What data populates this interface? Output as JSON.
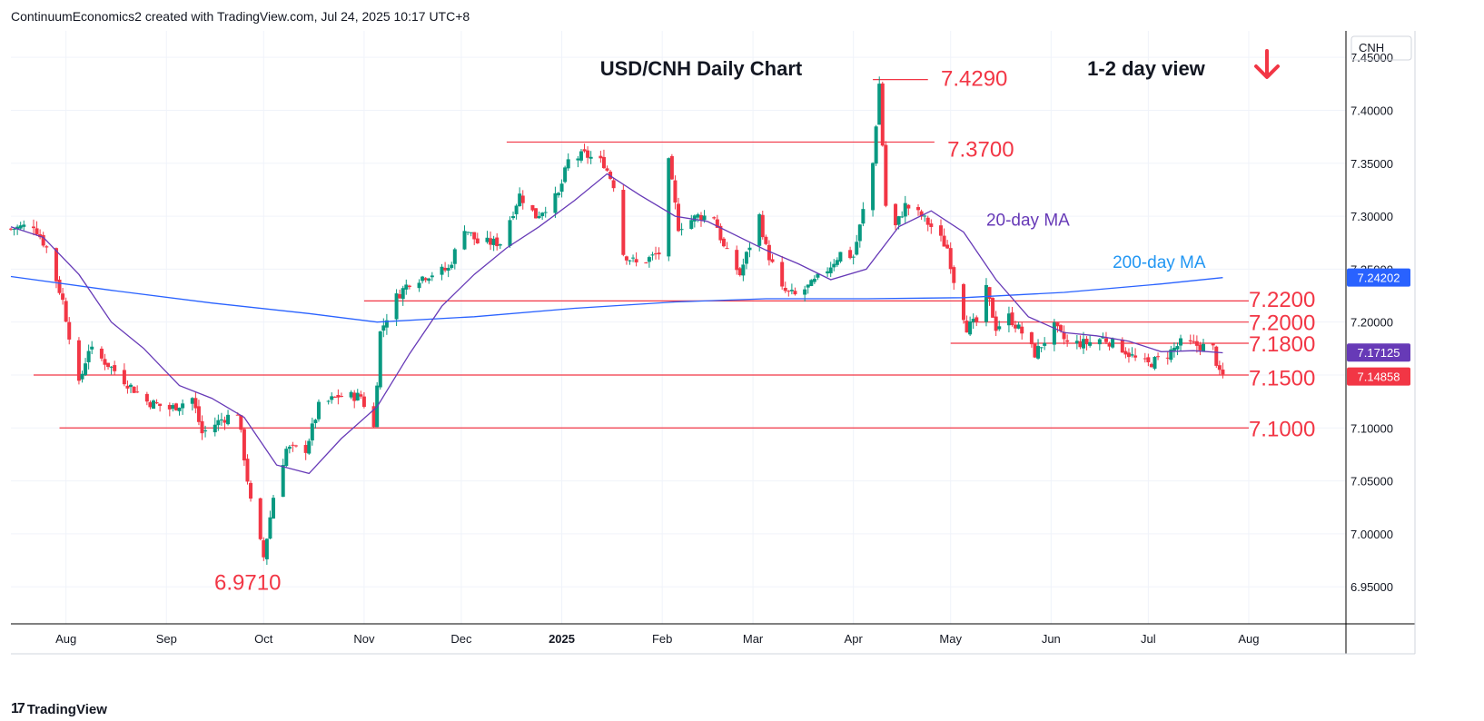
{
  "header": {
    "credit": "ContinuumEconomics2 created with TradingView.com, Jul 24, 2025 10:17 UTC+8"
  },
  "footer": {
    "logo_text": "TradingView"
  },
  "chart_data": {
    "type": "candlestick",
    "title": "USD/CNH Daily Chart",
    "view_label": "1-2 day view",
    "view_direction": "down",
    "currency_label": "CNH",
    "colors": {
      "up": "#089981",
      "down": "#f23645",
      "annotation": "#f23645",
      "ma20": "#673ab7",
      "ma200": "#2962ff",
      "ma200_label": "#2196f3",
      "grid": "#f0f3fa"
    },
    "ylim": [
      6.915,
      7.475
    ],
    "y_ticks": [
      "7.45000",
      "7.40000",
      "7.35000",
      "7.30000",
      "7.25000",
      "7.20000",
      "7.15000",
      "7.10000",
      "7.05000",
      "7.00000",
      "6.95000"
    ],
    "y_tick_values": [
      7.45,
      7.4,
      7.35,
      7.3,
      7.25,
      7.2,
      7.15,
      7.1,
      7.05,
      7.0,
      6.95
    ],
    "x_tick_labels": [
      {
        "label": "Aug",
        "date": "2024-08-01",
        "bold": false
      },
      {
        "label": "Sep",
        "date": "2024-09-01",
        "bold": false
      },
      {
        "label": "Oct",
        "date": "2024-10-01",
        "bold": false
      },
      {
        "label": "Nov",
        "date": "2024-11-01",
        "bold": false
      },
      {
        "label": "Dec",
        "date": "2024-12-01",
        "bold": false
      },
      {
        "label": "2025",
        "date": "2025-01-01",
        "bold": true
      },
      {
        "label": "Feb",
        "date": "2025-02-01",
        "bold": false
      },
      {
        "label": "Mar",
        "date": "2025-03-01",
        "bold": false
      },
      {
        "label": "Apr",
        "date": "2025-04-01",
        "bold": false
      },
      {
        "label": "May",
        "date": "2025-05-01",
        "bold": false
      },
      {
        "label": "Jun",
        "date": "2025-06-01",
        "bold": false
      },
      {
        "label": "Jul",
        "date": "2025-07-01",
        "bold": false
      },
      {
        "label": "Aug",
        "date": "2025-08-01",
        "bold": false
      }
    ],
    "x_range": [
      "2024-07-15",
      "2025-08-31"
    ],
    "price_path": [
      [
        "2024-07-15",
        7.288
      ],
      [
        "2024-07-22",
        7.292
      ],
      [
        "2024-07-26",
        7.27
      ],
      [
        "2024-07-31",
        7.22
      ],
      [
        "2024-08-05",
        7.14
      ],
      [
        "2024-08-08",
        7.175
      ],
      [
        "2024-08-14",
        7.16
      ],
      [
        "2024-08-20",
        7.142
      ],
      [
        "2024-08-26",
        7.125
      ],
      [
        "2024-09-02",
        7.118
      ],
      [
        "2024-09-09",
        7.128
      ],
      [
        "2024-09-12",
        7.095
      ],
      [
        "2024-09-18",
        7.108
      ],
      [
        "2024-09-23",
        7.115
      ],
      [
        "2024-09-27",
        7.03
      ],
      [
        "2024-10-01",
        6.978
      ],
      [
        "2024-10-04",
        7.035
      ],
      [
        "2024-10-08",
        7.08
      ],
      [
        "2024-10-14",
        7.08
      ],
      [
        "2024-10-18",
        7.12
      ],
      [
        "2024-10-24",
        7.13
      ],
      [
        "2024-10-31",
        7.13
      ],
      [
        "2024-11-04",
        7.1
      ],
      [
        "2024-11-06",
        7.19
      ],
      [
        "2024-11-10",
        7.22
      ],
      [
        "2024-11-15",
        7.238
      ],
      [
        "2024-11-21",
        7.245
      ],
      [
        "2024-11-27",
        7.25
      ],
      [
        "2024-12-02",
        7.29
      ],
      [
        "2024-12-06",
        7.275
      ],
      [
        "2024-12-13",
        7.275
      ],
      [
        "2024-12-19",
        7.32
      ],
      [
        "2024-12-24",
        7.3
      ],
      [
        "2024-12-31",
        7.32
      ],
      [
        "2025-01-03",
        7.352
      ],
      [
        "2025-01-08",
        7.358
      ],
      [
        "2025-01-14",
        7.35
      ],
      [
        "2025-01-17",
        7.33
      ],
      [
        "2025-01-20",
        7.265
      ],
      [
        "2025-01-24",
        7.255
      ],
      [
        "2025-01-28",
        7.26
      ],
      [
        "2025-01-31",
        7.265
      ],
      [
        "2025-02-03",
        7.35
      ],
      [
        "2025-02-06",
        7.29
      ],
      [
        "2025-02-12",
        7.3
      ],
      [
        "2025-02-17",
        7.3
      ],
      [
        "2025-02-20",
        7.27
      ],
      [
        "2025-02-25",
        7.245
      ],
      [
        "2025-03-03",
        7.3
      ],
      [
        "2025-03-05",
        7.27
      ],
      [
        "2025-03-10",
        7.23
      ],
      [
        "2025-03-14",
        7.225
      ],
      [
        "2025-03-19",
        7.235
      ],
      [
        "2025-03-24",
        7.25
      ],
      [
        "2025-03-28",
        7.265
      ],
      [
        "2025-04-01",
        7.262
      ],
      [
        "2025-04-03",
        7.29
      ],
      [
        "2025-04-07",
        7.35
      ],
      [
        "2025-04-09",
        7.425
      ],
      [
        "2025-04-11",
        7.31
      ],
      [
        "2025-04-14",
        7.29
      ],
      [
        "2025-04-17",
        7.31
      ],
      [
        "2025-04-22",
        7.3
      ],
      [
        "2025-04-25",
        7.29
      ],
      [
        "2025-04-30",
        7.27
      ],
      [
        "2025-05-02",
        7.24
      ],
      [
        "2025-05-06",
        7.195
      ],
      [
        "2025-05-09",
        7.2
      ],
      [
        "2025-05-12",
        7.23
      ],
      [
        "2025-05-15",
        7.195
      ],
      [
        "2025-05-19",
        7.205
      ],
      [
        "2025-05-23",
        7.19
      ],
      [
        "2025-05-27",
        7.17
      ],
      [
        "2025-06-02",
        7.195
      ],
      [
        "2025-06-06",
        7.18
      ],
      [
        "2025-06-12",
        7.18
      ],
      [
        "2025-06-17",
        7.185
      ],
      [
        "2025-06-23",
        7.175
      ],
      [
        "2025-06-27",
        7.165
      ],
      [
        "2025-07-01",
        7.16
      ],
      [
        "2025-07-07",
        7.17
      ],
      [
        "2025-07-11",
        7.18
      ],
      [
        "2025-07-16",
        7.178
      ],
      [
        "2025-07-21",
        7.175
      ],
      [
        "2025-07-23",
        7.15
      ],
      [
        "2025-07-24",
        7.149
      ]
    ],
    "ma20_path": [
      [
        "2024-07-15",
        7.29
      ],
      [
        "2024-07-25",
        7.28
      ],
      [
        "2024-08-05",
        7.245
      ],
      [
        "2024-08-15",
        7.2
      ],
      [
        "2024-08-25",
        7.175
      ],
      [
        "2024-09-05",
        7.14
      ],
      [
        "2024-09-15",
        7.128
      ],
      [
        "2024-09-25",
        7.11
      ],
      [
        "2024-10-05",
        7.065
      ],
      [
        "2024-10-15",
        7.057
      ],
      [
        "2024-10-25",
        7.09
      ],
      [
        "2024-11-05",
        7.12
      ],
      [
        "2024-11-15",
        7.17
      ],
      [
        "2024-11-25",
        7.215
      ],
      [
        "2024-12-05",
        7.245
      ],
      [
        "2024-12-15",
        7.27
      ],
      [
        "2024-12-25",
        7.29
      ],
      [
        "2025-01-05",
        7.315
      ],
      [
        "2025-01-15",
        7.34
      ],
      [
        "2025-01-25",
        7.32
      ],
      [
        "2025-02-05",
        7.3
      ],
      [
        "2025-02-15",
        7.295
      ],
      [
        "2025-02-25",
        7.28
      ],
      [
        "2025-03-05",
        7.268
      ],
      [
        "2025-03-15",
        7.255
      ],
      [
        "2025-03-25",
        7.24
      ],
      [
        "2025-04-05",
        7.25
      ],
      [
        "2025-04-15",
        7.29
      ],
      [
        "2025-04-25",
        7.305
      ],
      [
        "2025-05-05",
        7.285
      ],
      [
        "2025-05-15",
        7.24
      ],
      [
        "2025-05-25",
        7.205
      ],
      [
        "2025-06-05",
        7.19
      ],
      [
        "2025-06-15",
        7.187
      ],
      [
        "2025-06-25",
        7.182
      ],
      [
        "2025-07-05",
        7.172
      ],
      [
        "2025-07-15",
        7.173
      ],
      [
        "2025-07-24",
        7.171
      ]
    ],
    "ma200_path": [
      [
        "2024-07-15",
        7.243
      ],
      [
        "2024-08-15",
        7.23
      ],
      [
        "2024-09-15",
        7.218
      ],
      [
        "2024-10-15",
        7.208
      ],
      [
        "2024-11-05",
        7.2
      ],
      [
        "2024-12-05",
        7.205
      ],
      [
        "2025-01-05",
        7.213
      ],
      [
        "2025-02-05",
        7.219
      ],
      [
        "2025-03-05",
        7.222
      ],
      [
        "2025-04-05",
        7.222
      ],
      [
        "2025-05-05",
        7.223
      ],
      [
        "2025-06-05",
        7.228
      ],
      [
        "2025-07-05",
        7.236
      ],
      [
        "2025-07-24",
        7.242
      ]
    ],
    "support_resistance": [
      {
        "label": "7.4290",
        "value": 7.429,
        "from": "2025-04-07",
        "to": "2025-04-24",
        "label_at": "2025-04-28",
        "label_value": 7.431
      },
      {
        "label": "7.3700",
        "value": 7.37,
        "from": "2024-12-15",
        "to": "2025-04-26",
        "label_at": "2025-04-30",
        "label_value": 7.364
      },
      {
        "label": "7.2200",
        "value": 7.22,
        "from": "2024-11-01",
        "to": "2025-08-01",
        "label_at": "2025-08-01",
        "label_value": 7.222
      },
      {
        "label": "7.2000",
        "value": 7.2,
        "from": "2025-05-05",
        "to": "2025-08-01",
        "label_at": "2025-08-01",
        "label_value": 7.2
      },
      {
        "label": "7.1800",
        "value": 7.18,
        "from": "2025-05-01",
        "to": "2025-08-01",
        "label_at": "2025-08-01",
        "label_value": 7.18
      },
      {
        "label": "7.1500",
        "value": 7.15,
        "from": "2024-07-22",
        "to": "2025-08-01",
        "label_at": "2025-08-01",
        "label_value": 7.148
      },
      {
        "label": "7.1000",
        "value": 7.1,
        "from": "2024-07-30",
        "to": "2025-08-01",
        "label_at": "2025-08-01",
        "label_value": 7.1
      }
    ],
    "low_annotation": {
      "label": "6.9710",
      "value": 6.971,
      "date": "2024-09-27"
    },
    "ma_labels": [
      {
        "text": "20-day MA",
        "date": "2025-05-12",
        "value": 7.297,
        "color": "#673ab7"
      },
      {
        "text": "200-day MA",
        "date": "2025-06-20",
        "value": 7.257,
        "color": "#2196f3"
      }
    ],
    "price_tags": [
      {
        "value": 7.24202,
        "label": "7.24202",
        "color": "#2962ff"
      },
      {
        "value": 7.17125,
        "label": "7.17125",
        "color": "#673ab7"
      },
      {
        "value": 7.14858,
        "label": "7.14858",
        "color": "#f23645"
      }
    ]
  }
}
